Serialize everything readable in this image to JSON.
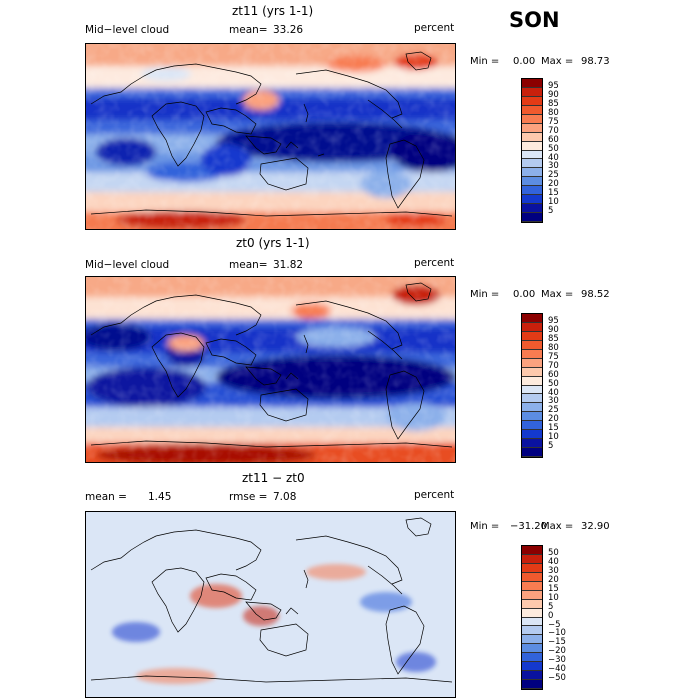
{
  "season": "SON",
  "unit_label": "percent",
  "panels": [
    {
      "title": "zt11 (yrs 1-1)",
      "left_label": "Mid−level cloud",
      "mean_label": "mean=",
      "mean_value": "33.26",
      "min_label": "Min =",
      "min_value": "0.00",
      "max_label": "Max =",
      "max_value": "98.73",
      "cbar_levels": [
        "95",
        "90",
        "85",
        "80",
        "75",
        "70",
        "60",
        "50",
        "40",
        "30",
        "25",
        "20",
        "15",
        "10",
        "5"
      ],
      "cbar_colors": [
        "#8b0000",
        "#c8200c",
        "#e33b16",
        "#f05a2e",
        "#f87c51",
        "#fba27f",
        "#fdc9ad",
        "#fdebde",
        "#dbe6f6",
        "#b4cbf0",
        "#8cb0ea",
        "#5c8de2",
        "#3263db",
        "#1439ce",
        "#0a12a0",
        "#000080"
      ]
    },
    {
      "title": "zt0 (yrs 1-1)",
      "left_label": "Mid−level cloud",
      "mean_label": "mean=",
      "mean_value": "31.82",
      "min_label": "Min =",
      "min_value": "0.00",
      "max_label": "Max =",
      "max_value": "98.52",
      "cbar_levels": [
        "95",
        "90",
        "85",
        "80",
        "75",
        "70",
        "60",
        "50",
        "40",
        "30",
        "25",
        "20",
        "15",
        "10",
        "5"
      ],
      "cbar_colors": [
        "#8b0000",
        "#c8200c",
        "#e33b16",
        "#f05a2e",
        "#f87c51",
        "#fba27f",
        "#fdc9ad",
        "#fdebde",
        "#dbe6f6",
        "#b4cbf0",
        "#8cb0ea",
        "#5c8de2",
        "#3263db",
        "#1439ce",
        "#0a12a0",
        "#000080"
      ]
    },
    {
      "title": "zt11 − zt0",
      "left_label": "mean =",
      "left_value": "1.45",
      "mean_label": "rmse =",
      "mean_value": "7.08",
      "min_label": "Min =",
      "min_value": "−31.20",
      "max_label": "Max =",
      "max_value": "32.90",
      "cbar_levels": [
        "50",
        "40",
        "30",
        "20",
        "15",
        "10",
        "5",
        "0",
        "−5",
        "−10",
        "−15",
        "−20",
        "−30",
        "−40",
        "−50"
      ],
      "cbar_colors": [
        "#8b0000",
        "#c8200c",
        "#e33b16",
        "#f05a2e",
        "#f87c51",
        "#fba27f",
        "#fdc9ad",
        "#fdebde",
        "#dbe6f6",
        "#b4cbf0",
        "#8cb0ea",
        "#5c8de2",
        "#3263db",
        "#1439ce",
        "#0a12a0",
        "#000080"
      ]
    }
  ]
}
